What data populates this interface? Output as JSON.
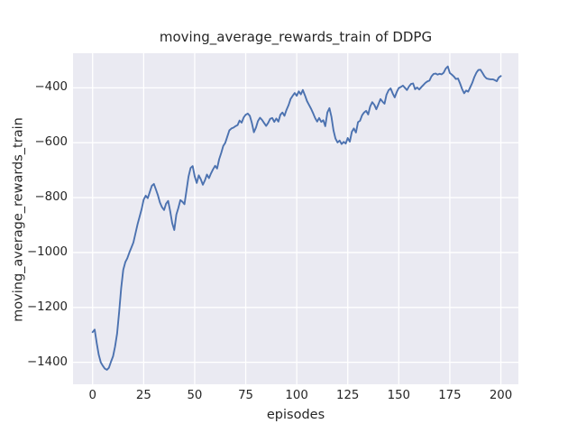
{
  "figure": {
    "background": "#ffffff"
  },
  "chart_data": {
    "type": "line",
    "title": "moving_average_rewards_train of DDPG",
    "xlabel": "episodes",
    "ylabel": "moving_average_rewards_train",
    "legend": null,
    "grid": true,
    "style": "seaborn-darkgrid",
    "axes_bg_color": "#eaeaf2",
    "grid_color": "#ffffff",
    "text_color": "#262626",
    "xticks": [
      0,
      25,
      50,
      75,
      100,
      125,
      150,
      175,
      200
    ],
    "yticks": [
      -400,
      -600,
      -800,
      -1000,
      -1200,
      -1400
    ],
    "xlim": [
      -9.6,
      208.6
    ],
    "ylim": [
      -1480,
      -274
    ],
    "series": [
      {
        "name": "moving_average_rewards_train",
        "color": "#4c72b0",
        "line_width": 1.9,
        "points": [
          [
            0,
            -1290
          ],
          [
            1,
            -1281
          ],
          [
            2,
            -1330
          ],
          [
            3,
            -1372
          ],
          [
            4,
            -1400
          ],
          [
            5,
            -1413
          ],
          [
            6,
            -1423
          ],
          [
            7,
            -1427
          ],
          [
            8,
            -1420
          ],
          [
            9,
            -1398
          ],
          [
            10,
            -1378
          ],
          [
            11,
            -1343
          ],
          [
            12,
            -1295
          ],
          [
            13,
            -1215
          ],
          [
            14,
            -1130
          ],
          [
            15,
            -1063
          ],
          [
            16,
            -1035
          ],
          [
            17,
            -1021
          ],
          [
            18,
            -1000
          ],
          [
            19,
            -982
          ],
          [
            20,
            -963
          ],
          [
            21,
            -930
          ],
          [
            22,
            -898
          ],
          [
            23,
            -870
          ],
          [
            24,
            -842
          ],
          [
            25,
            -808
          ],
          [
            26,
            -793
          ],
          [
            27,
            -802
          ],
          [
            28,
            -780
          ],
          [
            29,
            -757
          ],
          [
            30,
            -750
          ],
          [
            31,
            -770
          ],
          [
            32,
            -792
          ],
          [
            33,
            -818
          ],
          [
            34,
            -835
          ],
          [
            35,
            -845
          ],
          [
            36,
            -822
          ],
          [
            37,
            -812
          ],
          [
            38,
            -850
          ],
          [
            39,
            -893
          ],
          [
            40,
            -918
          ],
          [
            41,
            -862
          ],
          [
            42,
            -838
          ],
          [
            43,
            -809
          ],
          [
            44,
            -815
          ],
          [
            45,
            -824
          ],
          [
            46,
            -773
          ],
          [
            47,
            -724
          ],
          [
            48,
            -692
          ],
          [
            49,
            -685
          ],
          [
            50,
            -722
          ],
          [
            51,
            -747
          ],
          [
            52,
            -719
          ],
          [
            53,
            -733
          ],
          [
            54,
            -753
          ],
          [
            55,
            -737
          ],
          [
            56,
            -716
          ],
          [
            57,
            -729
          ],
          [
            58,
            -712
          ],
          [
            59,
            -697
          ],
          [
            60,
            -684
          ],
          [
            61,
            -694
          ],
          [
            62,
            -660
          ],
          [
            63,
            -637
          ],
          [
            64,
            -612
          ],
          [
            65,
            -600
          ],
          [
            66,
            -577
          ],
          [
            67,
            -555
          ],
          [
            68,
            -548
          ],
          [
            69,
            -545
          ],
          [
            70,
            -540
          ],
          [
            71,
            -536
          ],
          [
            72,
            -519
          ],
          [
            73,
            -527
          ],
          [
            74,
            -508
          ],
          [
            75,
            -498
          ],
          [
            76,
            -494
          ],
          [
            77,
            -502
          ],
          [
            78,
            -527
          ],
          [
            79,
            -562
          ],
          [
            80,
            -545
          ],
          [
            81,
            -521
          ],
          [
            82,
            -509
          ],
          [
            83,
            -517
          ],
          [
            84,
            -528
          ],
          [
            85,
            -539
          ],
          [
            86,
            -528
          ],
          [
            87,
            -513
          ],
          [
            88,
            -510
          ],
          [
            89,
            -524
          ],
          [
            90,
            -512
          ],
          [
            91,
            -523
          ],
          [
            92,
            -498
          ],
          [
            93,
            -490
          ],
          [
            94,
            -502
          ],
          [
            95,
            -480
          ],
          [
            96,
            -463
          ],
          [
            97,
            -441
          ],
          [
            98,
            -429
          ],
          [
            99,
            -419
          ],
          [
            100,
            -429
          ],
          [
            101,
            -413
          ],
          [
            102,
            -424
          ],
          [
            103,
            -408
          ],
          [
            104,
            -427
          ],
          [
            105,
            -448
          ],
          [
            106,
            -462
          ],
          [
            107,
            -476
          ],
          [
            108,
            -492
          ],
          [
            109,
            -510
          ],
          [
            110,
            -523
          ],
          [
            111,
            -510
          ],
          [
            112,
            -524
          ],
          [
            113,
            -518
          ],
          [
            114,
            -540
          ],
          [
            115,
            -490
          ],
          [
            116,
            -474
          ],
          [
            117,
            -505
          ],
          [
            118,
            -555
          ],
          [
            119,
            -585
          ],
          [
            120,
            -599
          ],
          [
            121,
            -592
          ],
          [
            122,
            -605
          ],
          [
            123,
            -597
          ],
          [
            124,
            -603
          ],
          [
            125,
            -583
          ],
          [
            126,
            -596
          ],
          [
            127,
            -560
          ],
          [
            128,
            -548
          ],
          [
            129,
            -563
          ],
          [
            130,
            -525
          ],
          [
            131,
            -520
          ],
          [
            132,
            -500
          ],
          [
            133,
            -490
          ],
          [
            134,
            -484
          ],
          [
            135,
            -497
          ],
          [
            136,
            -468
          ],
          [
            137,
            -452
          ],
          [
            138,
            -462
          ],
          [
            139,
            -478
          ],
          [
            140,
            -460
          ],
          [
            141,
            -441
          ],
          [
            142,
            -450
          ],
          [
            143,
            -458
          ],
          [
            144,
            -425
          ],
          [
            145,
            -409
          ],
          [
            146,
            -402
          ],
          [
            147,
            -420
          ],
          [
            148,
            -435
          ],
          [
            149,
            -415
          ],
          [
            150,
            -401
          ],
          [
            151,
            -397
          ],
          [
            152,
            -392
          ],
          [
            153,
            -400
          ],
          [
            154,
            -408
          ],
          [
            155,
            -395
          ],
          [
            156,
            -386
          ],
          [
            157,
            -384
          ],
          [
            158,
            -405
          ],
          [
            159,
            -399
          ],
          [
            160,
            -406
          ],
          [
            161,
            -398
          ],
          [
            162,
            -390
          ],
          [
            163,
            -382
          ],
          [
            164,
            -377
          ],
          [
            165,
            -374
          ],
          [
            166,
            -358
          ],
          [
            167,
            -350
          ],
          [
            168,
            -348
          ],
          [
            169,
            -352
          ],
          [
            170,
            -349
          ],
          [
            171,
            -351
          ],
          [
            172,
            -345
          ],
          [
            173,
            -330
          ],
          [
            174,
            -322
          ],
          [
            175,
            -346
          ],
          [
            176,
            -352
          ],
          [
            177,
            -359
          ],
          [
            178,
            -368
          ],
          [
            179,
            -366
          ],
          [
            180,
            -384
          ],
          [
            181,
            -404
          ],
          [
            182,
            -420
          ],
          [
            183,
            -410
          ],
          [
            184,
            -414
          ],
          [
            185,
            -398
          ],
          [
            186,
            -382
          ],
          [
            187,
            -361
          ],
          [
            188,
            -345
          ],
          [
            189,
            -335
          ],
          [
            190,
            -334
          ],
          [
            191,
            -346
          ],
          [
            192,
            -358
          ],
          [
            193,
            -366
          ],
          [
            194,
            -368
          ],
          [
            195,
            -369
          ],
          [
            196,
            -369
          ],
          [
            197,
            -372
          ],
          [
            198,
            -376
          ],
          [
            199,
            -362
          ],
          [
            200,
            -357
          ]
        ]
      }
    ]
  }
}
